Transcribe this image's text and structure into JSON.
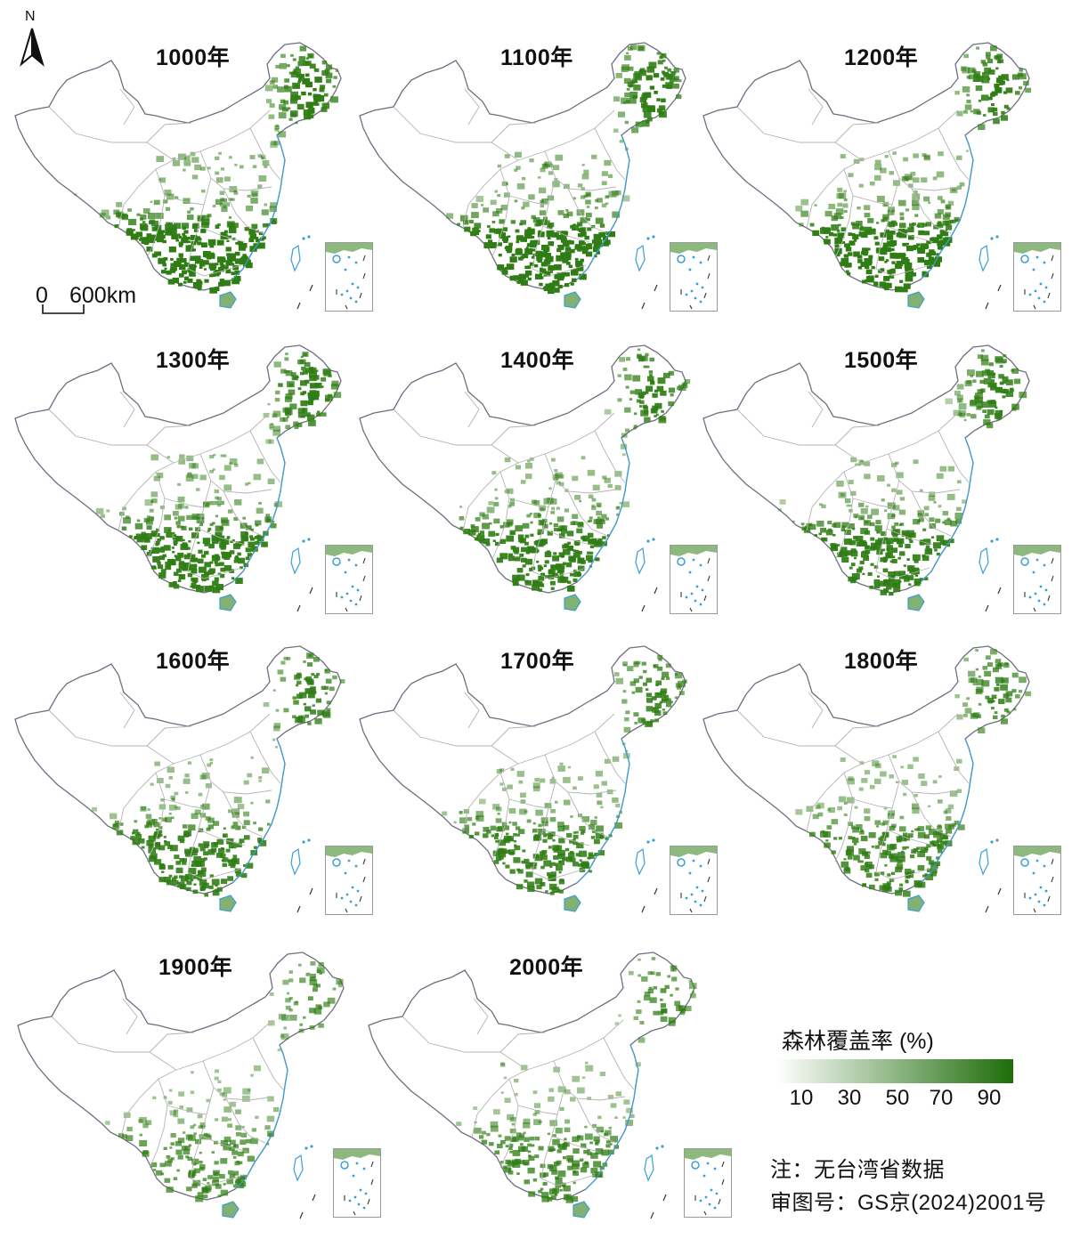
{
  "maps": [
    {
      "year_label": "1000年",
      "density": 1.0
    },
    {
      "year_label": "1100年",
      "density": 0.98
    },
    {
      "year_label": "1200年",
      "density": 0.95
    },
    {
      "year_label": "1300年",
      "density": 0.88
    },
    {
      "year_label": "1400年",
      "density": 0.86
    },
    {
      "year_label": "1500年",
      "density": 0.84
    },
    {
      "year_label": "1600年",
      "density": 0.8
    },
    {
      "year_label": "1700年",
      "density": 0.76
    },
    {
      "year_label": "1800年",
      "density": 0.7
    },
    {
      "year_label": "1900年",
      "density": 0.55
    },
    {
      "year_label": "2000年",
      "density": 0.62
    }
  ],
  "north_arrow": {
    "letter": "N"
  },
  "scale_bar": {
    "start": "0",
    "end": "600km"
  },
  "legend": {
    "title": "森林覆盖率 (%)",
    "ticks": [
      "10",
      "30",
      "50",
      "70",
      "90"
    ],
    "color_low": "#ffffff",
    "color_high": "#1e6d0a"
  },
  "notes": {
    "line1": "注：无台湾省数据",
    "line2": "审图号：GS京(2024)2001号"
  },
  "colors": {
    "forest": "#2f7d14",
    "boundary": "#6e6e80",
    "province": "#b4b4b4",
    "coast": "#3b9fd6"
  }
}
